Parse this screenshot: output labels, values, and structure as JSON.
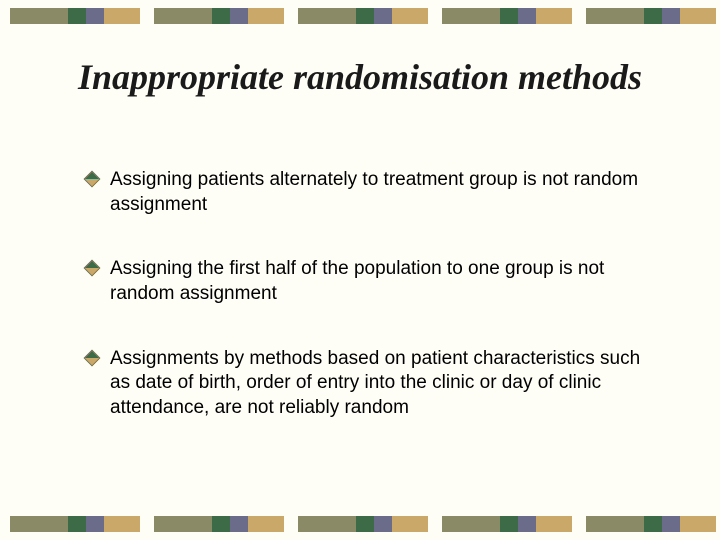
{
  "slide": {
    "background_color": "#fffef6",
    "title": "Inappropriate randomisation methods",
    "title_font": "Times New Roman",
    "title_fontstyle": "italic",
    "title_fontsize": 36,
    "title_color": "#1a1a1a",
    "body_fontsize": 19,
    "body_color": "#000000",
    "bullets": [
      "Assigning patients alternately to treatment group is not random assignment",
      " Assigning the first half of the population to one group is not random assignment",
      "Assignments by methods based on patient characteristics such as date of birth, order of entry into the clinic or day of clinic attendance, are not reliably random"
    ],
    "bullet_colors": {
      "half1": "#3e6b47",
      "half2": "#c9a86a",
      "border": "#6b6b4a"
    },
    "border_band": {
      "block_count": 5,
      "block_width": 130,
      "gap": 14,
      "height": 16,
      "stripes": [
        {
          "color": "#8a8a66",
          "width": 58
        },
        {
          "color": "#3e6b47",
          "width": 18
        },
        {
          "color": "#6b6b8a",
          "width": 18
        },
        {
          "color": "#c9a86a",
          "width": 36
        }
      ]
    }
  }
}
